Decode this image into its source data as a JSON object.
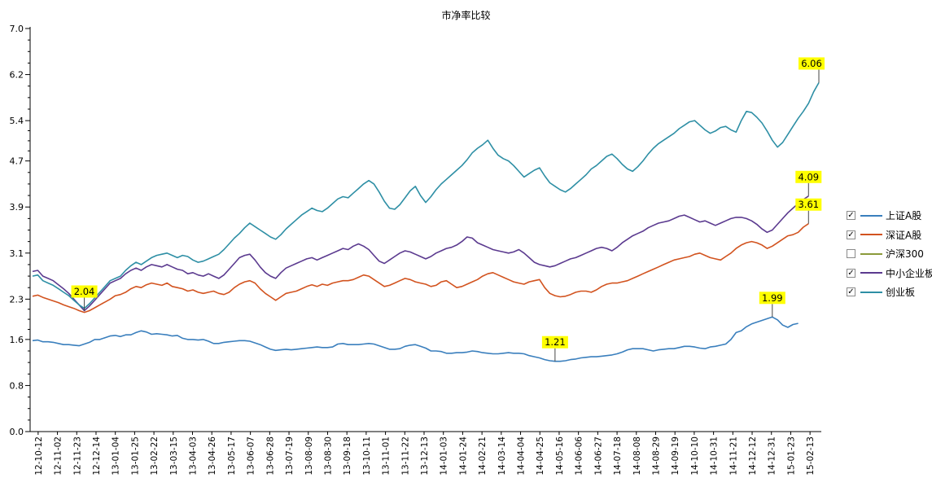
{
  "chart_data": {
    "type": "line",
    "title": "市净率比较",
    "xlabel": "",
    "ylabel": "",
    "ylim": [
      0.0,
      7.0
    ],
    "yticks": [
      "0.0",
      "0.8",
      "1.6",
      "2.3",
      "3.1",
      "3.9",
      "4.7",
      "5.4",
      "6.2",
      "7.0"
    ],
    "x_tick_labels": [
      "12-10-12",
      "12-11-02",
      "12-11-23",
      "12-12-14",
      "13-01-04",
      "13-01-25",
      "13-02-22",
      "13-03-15",
      "13-04-03",
      "13-04-26",
      "13-05-17",
      "13-06-07",
      "13-06-28",
      "13-07-19",
      "13-08-09",
      "13-08-30",
      "13-09-18",
      "13-10-11",
      "13-11-01",
      "13-11-22",
      "13-12-13",
      "14-01-03",
      "14-01-24",
      "14-02-21",
      "14-03-14",
      "14-04-04",
      "14-04-25",
      "14-05-16",
      "14-06-06",
      "14-06-27",
      "14-07-18",
      "14-08-08",
      "14-08-29",
      "14-09-19",
      "14-10-10",
      "14-10-31",
      "14-11-21",
      "14-12-12",
      "14-12-31",
      "15-01-23",
      "15-02-13"
    ],
    "grid": false,
    "legend_position": "right",
    "series": [
      {
        "name": "上证A股",
        "color": "#3a7fbd",
        "checked": true,
        "values": [
          1.58,
          1.59,
          1.56,
          1.56,
          1.55,
          1.53,
          1.51,
          1.51,
          1.5,
          1.49,
          1.52,
          1.55,
          1.6,
          1.6,
          1.63,
          1.66,
          1.67,
          1.65,
          1.68,
          1.68,
          1.72,
          1.75,
          1.73,
          1.69,
          1.7,
          1.69,
          1.68,
          1.66,
          1.67,
          1.62,
          1.6,
          1.6,
          1.59,
          1.6,
          1.57,
          1.53,
          1.53,
          1.55,
          1.56,
          1.57,
          1.58,
          1.58,
          1.57,
          1.54,
          1.51,
          1.47,
          1.43,
          1.41,
          1.42,
          1.43,
          1.42,
          1.43,
          1.44,
          1.45,
          1.46,
          1.47,
          1.46,
          1.46,
          1.47,
          1.52,
          1.53,
          1.51,
          1.51,
          1.51,
          1.52,
          1.53,
          1.52,
          1.49,
          1.46,
          1.43,
          1.43,
          1.44,
          1.48,
          1.5,
          1.51,
          1.48,
          1.45,
          1.4,
          1.4,
          1.39,
          1.36,
          1.36,
          1.37,
          1.37,
          1.38,
          1.4,
          1.39,
          1.37,
          1.36,
          1.35,
          1.35,
          1.36,
          1.37,
          1.36,
          1.36,
          1.35,
          1.32,
          1.3,
          1.28,
          1.25,
          1.23,
          1.22,
          1.22,
          1.23,
          1.25,
          1.26,
          1.28,
          1.29,
          1.3,
          1.3,
          1.31,
          1.32,
          1.33,
          1.35,
          1.38,
          1.42,
          1.44,
          1.44,
          1.44,
          1.42,
          1.4,
          1.42,
          1.43,
          1.44,
          1.44,
          1.46,
          1.48,
          1.48,
          1.47,
          1.45,
          1.44,
          1.47,
          1.48,
          1.5,
          1.52,
          1.6,
          1.72,
          1.75,
          1.82,
          1.87,
          1.9,
          1.93,
          1.96,
          1.99,
          1.94,
          1.85,
          1.81,
          1.86,
          1.88
        ]
      },
      {
        "name": "深证A股",
        "color": "#d2531f",
        "checked": true,
        "values": [
          2.35,
          2.37,
          2.33,
          2.3,
          2.27,
          2.24,
          2.2,
          2.17,
          2.14,
          2.1,
          2.07,
          2.1,
          2.15,
          2.2,
          2.25,
          2.3,
          2.36,
          2.38,
          2.42,
          2.48,
          2.52,
          2.5,
          2.55,
          2.58,
          2.56,
          2.54,
          2.58,
          2.52,
          2.5,
          2.48,
          2.44,
          2.46,
          2.42,
          2.4,
          2.42,
          2.44,
          2.4,
          2.38,
          2.42,
          2.5,
          2.56,
          2.6,
          2.62,
          2.58,
          2.48,
          2.4,
          2.34,
          2.28,
          2.34,
          2.4,
          2.42,
          2.44,
          2.48,
          2.52,
          2.55,
          2.52,
          2.56,
          2.54,
          2.58,
          2.6,
          2.62,
          2.62,
          2.64,
          2.68,
          2.72,
          2.7,
          2.64,
          2.58,
          2.52,
          2.54,
          2.58,
          2.62,
          2.66,
          2.64,
          2.6,
          2.58,
          2.56,
          2.52,
          2.54,
          2.6,
          2.62,
          2.56,
          2.5,
          2.52,
          2.56,
          2.6,
          2.64,
          2.7,
          2.74,
          2.76,
          2.72,
          2.68,
          2.64,
          2.6,
          2.58,
          2.56,
          2.6,
          2.62,
          2.64,
          2.5,
          2.4,
          2.36,
          2.34,
          2.35,
          2.38,
          2.42,
          2.44,
          2.44,
          2.42,
          2.46,
          2.52,
          2.56,
          2.58,
          2.58,
          2.6,
          2.62,
          2.66,
          2.7,
          2.74,
          2.78,
          2.82,
          2.86,
          2.9,
          2.94,
          2.98,
          3.0,
          3.02,
          3.04,
          3.08,
          3.1,
          3.06,
          3.02,
          3.0,
          2.98,
          3.04,
          3.1,
          3.18,
          3.24,
          3.28,
          3.3,
          3.28,
          3.24,
          3.18,
          3.22,
          3.28,
          3.34,
          3.4,
          3.42,
          3.46,
          3.55,
          3.61
        ]
      },
      {
        "name": "沪深300",
        "color": "#8b9a3a",
        "checked": false,
        "values": []
      },
      {
        "name": "中小企业板",
        "color": "#5b3a8f",
        "checked": true,
        "values": [
          2.78,
          2.8,
          2.7,
          2.66,
          2.62,
          2.55,
          2.48,
          2.4,
          2.3,
          2.2,
          2.1,
          2.18,
          2.28,
          2.38,
          2.48,
          2.58,
          2.62,
          2.66,
          2.74,
          2.8,
          2.84,
          2.8,
          2.86,
          2.9,
          2.88,
          2.86,
          2.9,
          2.86,
          2.82,
          2.8,
          2.74,
          2.76,
          2.72,
          2.7,
          2.74,
          2.7,
          2.66,
          2.72,
          2.82,
          2.92,
          3.02,
          3.06,
          3.08,
          2.98,
          2.86,
          2.76,
          2.7,
          2.66,
          2.76,
          2.84,
          2.88,
          2.92,
          2.96,
          3.0,
          3.02,
          2.98,
          3.02,
          3.06,
          3.1,
          3.14,
          3.18,
          3.16,
          3.22,
          3.26,
          3.22,
          3.16,
          3.06,
          2.96,
          2.92,
          2.98,
          3.04,
          3.1,
          3.14,
          3.12,
          3.08,
          3.04,
          3.0,
          3.04,
          3.1,
          3.14,
          3.18,
          3.2,
          3.24,
          3.3,
          3.38,
          3.36,
          3.28,
          3.24,
          3.2,
          3.16,
          3.14,
          3.12,
          3.1,
          3.12,
          3.16,
          3.1,
          3.02,
          2.94,
          2.9,
          2.88,
          2.86,
          2.88,
          2.92,
          2.96,
          3.0,
          3.02,
          3.06,
          3.1,
          3.14,
          3.18,
          3.2,
          3.18,
          3.14,
          3.2,
          3.28,
          3.34,
          3.4,
          3.44,
          3.48,
          3.54,
          3.58,
          3.62,
          3.64,
          3.66,
          3.7,
          3.74,
          3.76,
          3.72,
          3.68,
          3.64,
          3.66,
          3.62,
          3.58,
          3.62,
          3.66,
          3.7,
          3.72,
          3.72,
          3.7,
          3.66,
          3.6,
          3.52,
          3.46,
          3.5,
          3.6,
          3.7,
          3.8,
          3.88,
          3.96,
          4.03,
          4.09
        ]
      },
      {
        "name": "创业板",
        "color": "#2e8fa5",
        "checked": true,
        "values": [
          2.7,
          2.72,
          2.62,
          2.58,
          2.54,
          2.48,
          2.42,
          2.36,
          2.28,
          2.2,
          2.14,
          2.22,
          2.32,
          2.42,
          2.52,
          2.62,
          2.66,
          2.7,
          2.8,
          2.88,
          2.94,
          2.9,
          2.96,
          3.02,
          3.06,
          3.08,
          3.1,
          3.06,
          3.02,
          3.06,
          3.04,
          2.98,
          2.94,
          2.96,
          3.0,
          3.04,
          3.08,
          3.16,
          3.26,
          3.36,
          3.44,
          3.54,
          3.62,
          3.56,
          3.5,
          3.44,
          3.38,
          3.34,
          3.42,
          3.52,
          3.6,
          3.68,
          3.76,
          3.82,
          3.88,
          3.84,
          3.82,
          3.88,
          3.96,
          4.04,
          4.08,
          4.06,
          4.14,
          4.22,
          4.3,
          4.36,
          4.3,
          4.16,
          4.0,
          3.88,
          3.86,
          3.94,
          4.06,
          4.18,
          4.26,
          4.1,
          3.98,
          4.08,
          4.2,
          4.3,
          4.38,
          4.46,
          4.54,
          4.62,
          4.72,
          4.84,
          4.92,
          4.98,
          5.06,
          4.92,
          4.8,
          4.74,
          4.7,
          4.62,
          4.52,
          4.42,
          4.48,
          4.54,
          4.58,
          4.44,
          4.32,
          4.26,
          4.2,
          4.16,
          4.22,
          4.3,
          4.38,
          4.46,
          4.56,
          4.62,
          4.7,
          4.78,
          4.82,
          4.74,
          4.64,
          4.56,
          4.52,
          4.6,
          4.7,
          4.82,
          4.92,
          5.0,
          5.06,
          5.12,
          5.18,
          5.26,
          5.32,
          5.38,
          5.4,
          5.32,
          5.24,
          5.18,
          5.22,
          5.28,
          5.3,
          5.24,
          5.2,
          5.4,
          5.56,
          5.54,
          5.46,
          5.36,
          5.22,
          5.06,
          4.94,
          5.02,
          5.16,
          5.3,
          5.44,
          5.56,
          5.7,
          5.9,
          6.06
        ]
      }
    ],
    "annotations": [
      {
        "text": "6.06",
        "series": "创业板"
      },
      {
        "text": "4.09",
        "series": "中小企业板"
      },
      {
        "text": "3.61",
        "series": "深证A股"
      },
      {
        "text": "2.04",
        "series": "中小企业板"
      },
      {
        "text": "1.99",
        "series": "上证A股"
      },
      {
        "text": "1.21",
        "series": "上证A股"
      }
    ]
  }
}
